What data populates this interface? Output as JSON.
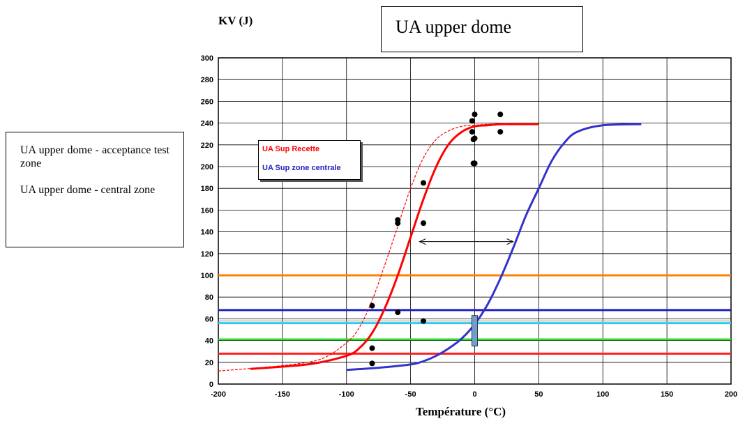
{
  "title": "UA upper dome",
  "side_legend": {
    "entry1": "UA upper dome - acceptance test zone",
    "entry2": "UA upper dome - central zone"
  },
  "chart_data": {
    "type": "line",
    "ylabel": "KV (J)",
    "xlabel": "Température (°C)",
    "xlim": [
      -200,
      200
    ],
    "ylim": [
      0,
      300
    ],
    "x_ticks": [
      -200,
      -150,
      -100,
      -50,
      0,
      50,
      100,
      150,
      200
    ],
    "y_ticks": [
      0,
      20,
      40,
      60,
      80,
      100,
      120,
      140,
      160,
      180,
      200,
      220,
      240,
      260,
      280,
      300
    ],
    "grid": true,
    "legend": [
      "UA Sup Recette",
      "UA Sup zone centrale"
    ],
    "series": [
      {
        "name": "UA Sup Recette",
        "style": "solid",
        "color": "#ff0000",
        "x": [
          -175,
          -150,
          -125,
          -100,
          -90,
          -80,
          -70,
          -60,
          -50,
          -40,
          -30,
          -20,
          -10,
          0,
          10,
          20,
          30,
          40,
          50
        ],
        "y": [
          14,
          16,
          19,
          26,
          33,
          47,
          70,
          100,
          135,
          170,
          200,
          221,
          232,
          237,
          238,
          239,
          239,
          239,
          239
        ]
      },
      {
        "style": "dashed",
        "color": "#ff0000",
        "x": [
          -200,
          -150,
          -120,
          -100,
          -90,
          -80,
          -70,
          -60,
          -50,
          -40,
          -30,
          -20,
          -10,
          0,
          10,
          20
        ],
        "y": [
          12,
          17,
          23,
          38,
          52,
          77,
          110,
          145,
          180,
          208,
          225,
          233,
          237,
          238,
          239,
          239
        ]
      },
      {
        "name": "UA Sup zone centrale",
        "style": "solid",
        "color": "#3333cc",
        "x": [
          -100,
          -75,
          -50,
          -40,
          -30,
          -20,
          -10,
          0,
          10,
          20,
          30,
          40,
          50,
          60,
          70,
          80,
          100,
          130
        ],
        "y": [
          13,
          15,
          18,
          21,
          26,
          33,
          42,
          55,
          73,
          97,
          125,
          155,
          180,
          205,
          222,
          232,
          238,
          239
        ]
      }
    ],
    "points": {
      "x": [
        -80,
        -80,
        -80,
        -60,
        -60,
        -60,
        -40,
        -40,
        -40,
        -2,
        -2,
        -1,
        0,
        0,
        0,
        -1,
        0,
        20,
        20
      ],
      "y": [
        72,
        33,
        19,
        66,
        151,
        148,
        185,
        148,
        58,
        242,
        232,
        225,
        226,
        248,
        203,
        203,
        203,
        248,
        232
      ]
    },
    "hlines": [
      {
        "y": 100,
        "color": "#ff7f00"
      },
      {
        "y": 68,
        "color": "#2020cc"
      },
      {
        "y": 58,
        "color": "#888888"
      },
      {
        "y": 56,
        "color": "#33ccee"
      },
      {
        "y": 41,
        "color": "#33dd33"
      },
      {
        "y": 28,
        "color": "#ff2020"
      }
    ],
    "arrow": {
      "x1": -43,
      "x2": 30,
      "y": 131
    },
    "bar_marker": {
      "x": 0,
      "y1": 35,
      "y2": 63,
      "color": "#6f9fd0"
    }
  }
}
